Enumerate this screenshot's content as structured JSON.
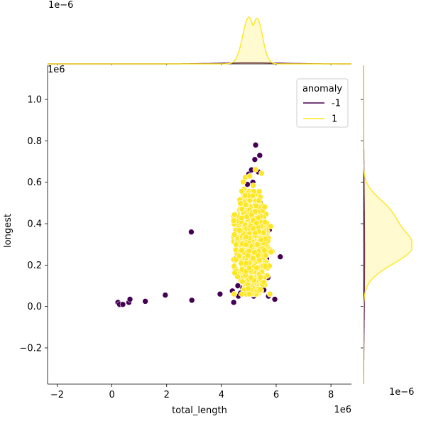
{
  "chart_data": {
    "type": "scatter",
    "title": "",
    "xlabel": "total_length",
    "ylabel": "longest",
    "x_offset_label": "1e6",
    "y_offset_label": "1e6",
    "xlim": [
      -2.35,
      8.75
    ],
    "ylim": [
      -0.375,
      1.165
    ],
    "xticks": [
      -2,
      0,
      2,
      4,
      6,
      8
    ],
    "yticks": [
      -0.2,
      0.0,
      0.2,
      0.4,
      0.6,
      0.8,
      1.0
    ],
    "xtick_labels": [
      "−2",
      "0",
      "2",
      "4",
      "6",
      "8"
    ],
    "ytick_labels": [
      "−0.2",
      "0.0",
      "0.2",
      "0.4",
      "0.6",
      "0.8",
      "1.0"
    ],
    "grid": false,
    "legend": {
      "title": "anomaly",
      "position": "top-right",
      "entries": [
        {
          "label": "-1",
          "color": "#440154"
        },
        {
          "label": "1",
          "color": "#fde725"
        }
      ]
    },
    "series": [
      {
        "name": "-1",
        "color": "#440154",
        "points": [
          [
            0.22,
            0.02
          ],
          [
            0.28,
            0.01
          ],
          [
            0.4,
            0.01
          ],
          [
            0.62,
            0.02
          ],
          [
            0.66,
            0.035
          ],
          [
            1.22,
            0.025
          ],
          [
            1.95,
            0.055
          ],
          [
            2.9,
            0.36
          ],
          [
            2.92,
            0.03
          ],
          [
            3.95,
            0.06
          ],
          [
            4.4,
            0.075
          ],
          [
            4.45,
            0.02
          ],
          [
            4.5,
            0.23
          ],
          [
            4.6,
            0.1
          ],
          [
            4.62,
            0.05
          ],
          [
            4.7,
            0.065
          ],
          [
            4.78,
            0.09
          ],
          [
            4.85,
            0.28
          ],
          [
            4.9,
            0.07
          ],
          [
            4.95,
            0.59
          ],
          [
            5.0,
            0.64
          ],
          [
            5.05,
            0.1
          ],
          [
            5.1,
            0.66
          ],
          [
            5.15,
            0.6
          ],
          [
            5.18,
            0.05
          ],
          [
            5.22,
            0.71
          ],
          [
            5.25,
            0.78
          ],
          [
            5.28,
            0.09
          ],
          [
            5.3,
            0.14
          ],
          [
            5.35,
            0.65
          ],
          [
            5.4,
            0.73
          ],
          [
            5.42,
            0.5
          ],
          [
            5.45,
            0.1
          ],
          [
            5.5,
            0.3
          ],
          [
            5.55,
            0.08
          ],
          [
            5.6,
            0.33
          ],
          [
            5.65,
            0.23
          ],
          [
            5.7,
            0.14
          ],
          [
            5.72,
            0.05
          ],
          [
            5.75,
            0.37
          ],
          [
            5.95,
            0.035
          ],
          [
            6.15,
            0.24
          ]
        ]
      },
      {
        "name": "1",
        "color": "#fde725",
        "cluster": {
          "x_range": [
            4.45,
            5.85
          ],
          "y_range": [
            0.06,
            0.75
          ],
          "x_center": 5.1,
          "y_center": 0.3,
          "count": 1600
        }
      }
    ],
    "marginal_x": {
      "offset_label": "1e−6",
      "series": [
        {
          "name": "-1",
          "color": "#440154",
          "mean": 5.1,
          "sd": 1.2,
          "peak_fraction": 0.02
        },
        {
          "name": "1",
          "color": "#fde725",
          "mean": 5.1,
          "sd": 0.26,
          "peak_fraction": 0.92
        }
      ]
    },
    "marginal_y": {
      "offset_label": "1e−6",
      "series": [
        {
          "name": "-1",
          "color": "#440154",
          "mean": 0.25,
          "sd": 0.3,
          "peak_fraction": 0.02
        },
        {
          "name": "1",
          "color": "#fde725",
          "mean": 0.29,
          "sd": 0.085,
          "peak_fraction": 0.92
        }
      ]
    }
  }
}
